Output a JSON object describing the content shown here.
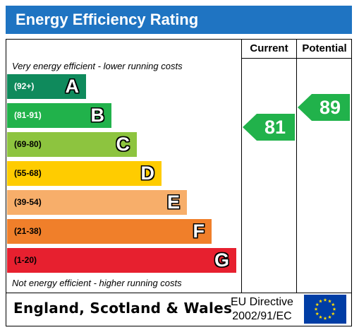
{
  "title": "Energy Efficiency Rating",
  "columns": {
    "current": "Current",
    "potential": "Potential"
  },
  "captions": {
    "top": "Very energy efficient - lower running costs",
    "bottom": "Not energy efficient - higher running costs"
  },
  "bands": [
    {
      "range": "(92+)",
      "letter": "A",
      "color": "#0f8a5c",
      "text_color": "#ffffff"
    },
    {
      "range": "(81-91)",
      "letter": "B",
      "color": "#21b24b",
      "text_color": "#ffffff"
    },
    {
      "range": "(69-80)",
      "letter": "C",
      "color": "#8dc43f",
      "text_color": "#000000"
    },
    {
      "range": "(55-68)",
      "letter": "D",
      "color": "#ffcc00",
      "text_color": "#000000"
    },
    {
      "range": "(39-54)",
      "letter": "E",
      "color": "#f7ae6a",
      "text_color": "#000000"
    },
    {
      "range": "(21-38)",
      "letter": "F",
      "color": "#f07f2a",
      "text_color": "#000000"
    },
    {
      "range": "(1-20)",
      "letter": "G",
      "color": "#e7202f",
      "text_color": "#000000"
    }
  ],
  "ratings": {
    "current": {
      "value": "81",
      "band": "B",
      "color": "#21b24b"
    },
    "potential": {
      "value": "89",
      "band": "B",
      "color": "#21b24b"
    }
  },
  "footer": {
    "country": "England, Scotland & Wales",
    "directive_line1": "EU Directive",
    "directive_line2": "2002/91/EC"
  },
  "colors": {
    "title_bar": "#1f74c2",
    "eu_flag": "#003da5",
    "eu_stars": "#ffdd00"
  }
}
